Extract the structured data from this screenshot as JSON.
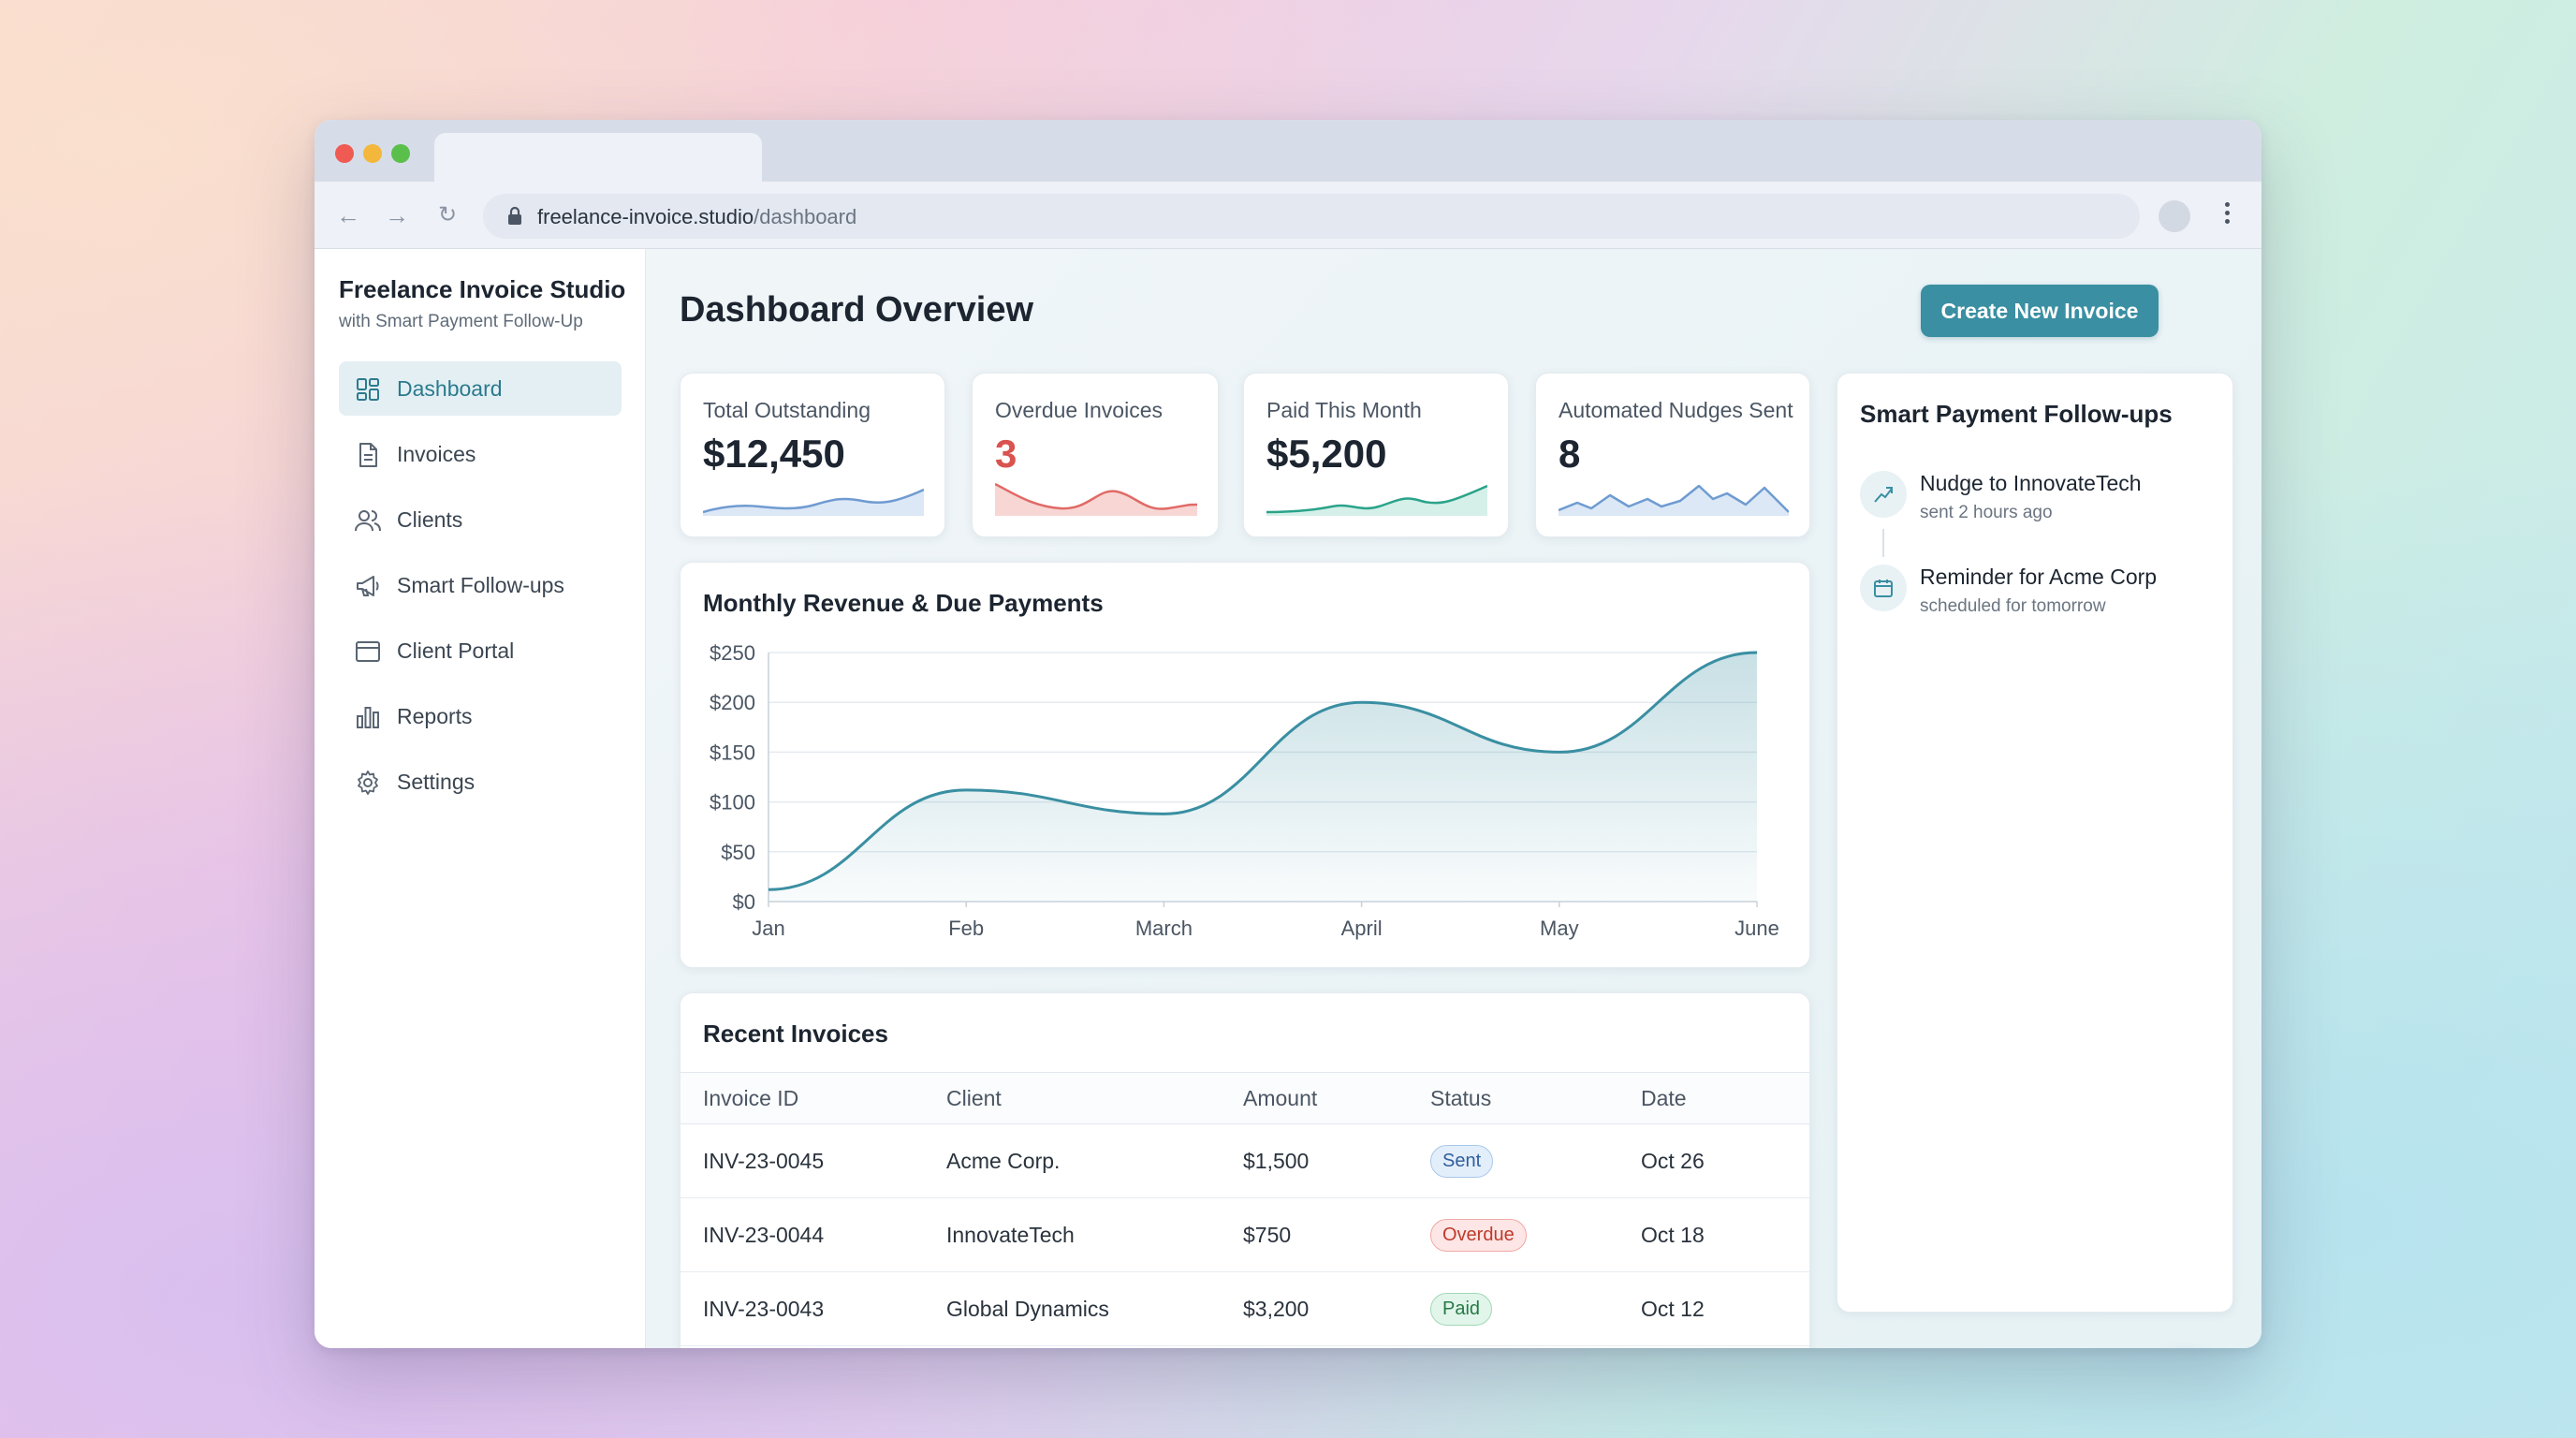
{
  "browser": {
    "url_domain": "freelance-invoice.studio",
    "url_path": "/dashboard"
  },
  "sidebar": {
    "brand_title": "Freelance Invoice Studio",
    "brand_subtitle": "with Smart Payment Follow-Up",
    "items": [
      {
        "label": "Dashboard",
        "icon": "grid-icon",
        "active": true
      },
      {
        "label": "Invoices",
        "icon": "document-icon",
        "active": false
      },
      {
        "label": "Clients",
        "icon": "users-icon",
        "active": false
      },
      {
        "label": "Smart Follow-ups",
        "icon": "megaphone-icon",
        "active": false
      },
      {
        "label": "Client Portal",
        "icon": "browser-window-icon",
        "active": false
      },
      {
        "label": "Reports",
        "icon": "bar-chart-icon",
        "active": false
      },
      {
        "label": "Settings",
        "icon": "gear-icon",
        "active": false
      }
    ]
  },
  "header": {
    "title": "Dashboard Overview",
    "create_button": "Create New Invoice"
  },
  "stats": [
    {
      "label": "Total Outstanding",
      "value": "$12,450",
      "color": "#4a7fc1"
    },
    {
      "label": "Overdue Invoices",
      "value": "3",
      "color": "#d9534f"
    },
    {
      "label": "Paid This Month",
      "value": "$5,200",
      "color": "#2aa38a"
    },
    {
      "label": "Automated Nudges Sent",
      "value": "8",
      "color": "#4a7fc1"
    }
  ],
  "chart": {
    "title": "Monthly Revenue & Due Payments"
  },
  "chart_data": {
    "type": "area",
    "title": "Monthly Revenue & Due Payments",
    "categories": [
      "Jan",
      "Feb",
      "March",
      "April",
      "May",
      "June"
    ],
    "values": [
      12,
      112,
      88,
      200,
      150,
      250
    ],
    "y_ticks": [
      "$0",
      "$50",
      "$100",
      "$150",
      "$200",
      "$250"
    ],
    "ylim": [
      0,
      250
    ],
    "grid": true,
    "color": "#3a8fa2"
  },
  "recent": {
    "title": "Recent Invoices",
    "columns": [
      "Invoice ID",
      "Client",
      "Amount",
      "Status",
      "Date"
    ],
    "rows": [
      {
        "id": "INV-23-0045",
        "client": "Acme Corp.",
        "amount": "$1,500",
        "status": "Sent",
        "status_type": "sent",
        "date": "Oct 26"
      },
      {
        "id": "INV-23-0044",
        "client": "InnovateTech",
        "amount": "$750",
        "status": "Overdue",
        "status_type": "overdue",
        "date": "Oct 18"
      },
      {
        "id": "INV-23-0043",
        "client": "Global Dynamics",
        "amount": "$3,200",
        "status": "Paid",
        "status_type": "paid",
        "date": "Oct 12"
      }
    ]
  },
  "followups": {
    "title": "Smart Payment Follow-ups",
    "items": [
      {
        "title": "Nudge to InnovateTech",
        "sub": "sent 2 hours ago",
        "icon": "send-nudge-icon"
      },
      {
        "title": "Reminder for Acme Corp",
        "sub": "scheduled for tomorrow",
        "icon": "calendar-icon"
      }
    ]
  },
  "chat": {
    "icon": "chat-bubble-icon"
  }
}
